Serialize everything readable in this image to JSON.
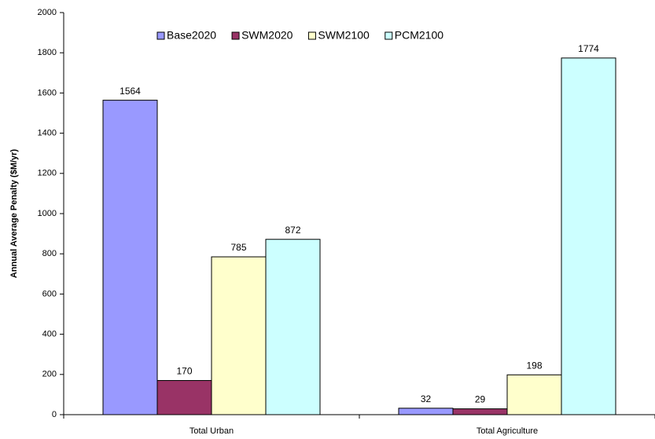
{
  "chart_data": {
    "type": "bar",
    "y_label": "Annual Average Penalty ($M/yr)",
    "categories": [
      "Total Urban",
      "Total Agriculture"
    ],
    "series": [
      {
        "name": "Base2020",
        "color": "#9999ff",
        "values": [
          1564,
          32
        ]
      },
      {
        "name": "SWM2020",
        "color": "#993366",
        "values": [
          170,
          29
        ]
      },
      {
        "name": "SWM2100",
        "color": "#ffffcc",
        "values": [
          785,
          198
        ]
      },
      {
        "name": "PCM2100",
        "color": "#ccffff",
        "values": [
          872,
          1774
        ]
      }
    ],
    "ylim": [
      0,
      2000
    ],
    "yticks": [
      0,
      200,
      400,
      600,
      800,
      1000,
      1200,
      1400,
      1600,
      1800,
      2000
    ],
    "grid": false,
    "legend": "top"
  }
}
